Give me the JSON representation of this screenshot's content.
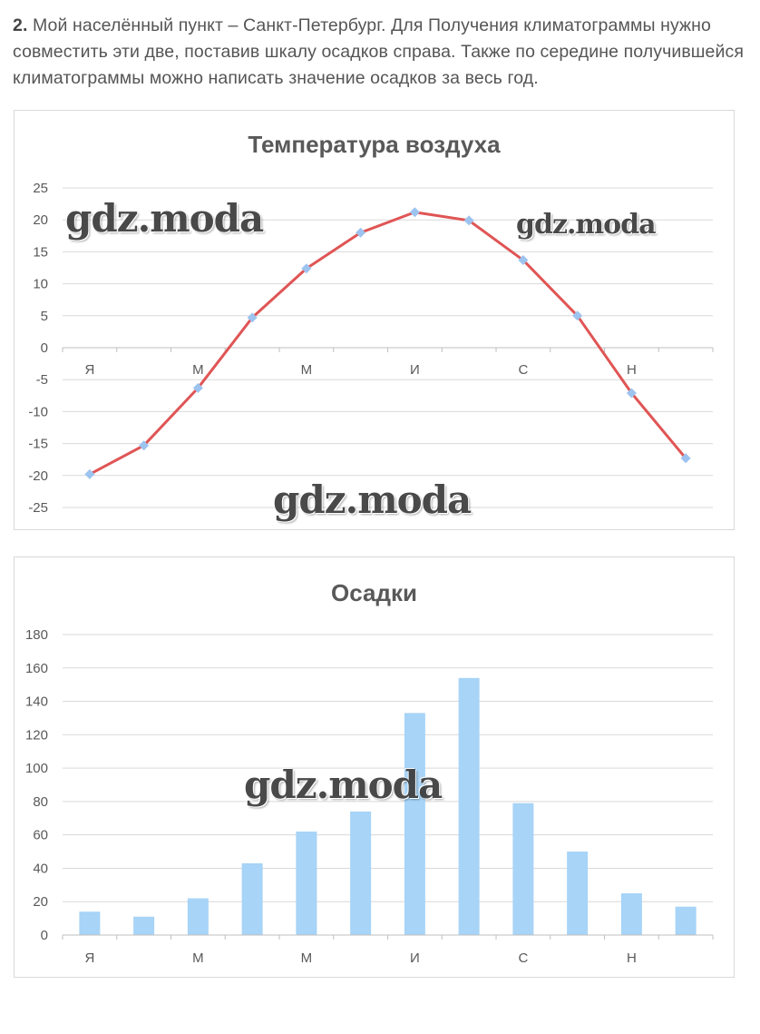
{
  "intro": {
    "number": "2.",
    "text": " Мой населённый пункт – Санкт-Петербург. Для Получения климатограммы нужно совместить эти две, поставив шкалу осадков справа. Также по середине получившейся климатограммы можно написать значение осадков за весь год."
  },
  "watermark": "gdz.moda",
  "colors": {
    "line": "#e05555",
    "marker": "#9dc3ef",
    "bar": "#a7d4f7",
    "grid": "#d9d9d9"
  },
  "chart_data": [
    {
      "type": "line",
      "title": "Температура воздуха",
      "x_labels": [
        "Я",
        "",
        "М",
        "",
        "М",
        "",
        "И",
        "",
        "С",
        "",
        "Н",
        ""
      ],
      "values": [
        -19.8,
        -15.3,
        -6.3,
        4.7,
        12.4,
        18.0,
        21.2,
        19.9,
        13.7,
        5.0,
        -7.1,
        -17.3
      ],
      "ylim": [
        -25,
        25
      ],
      "yticks": [
        25,
        20,
        15,
        10,
        5,
        0,
        -5,
        -10,
        -15,
        -20,
        -25
      ],
      "grid": true
    },
    {
      "type": "bar",
      "title": "Осадки",
      "x_labels": [
        "Я",
        "",
        "М",
        "",
        "М",
        "",
        "И",
        "",
        "С",
        "",
        "Н",
        ""
      ],
      "values": [
        14,
        11,
        22,
        43,
        62,
        74,
        133,
        154,
        79,
        50,
        25,
        17
      ],
      "ylim": [
        0,
        180
      ],
      "yticks": [
        180,
        160,
        140,
        120,
        100,
        80,
        60,
        40,
        20,
        0
      ],
      "grid": true
    }
  ]
}
